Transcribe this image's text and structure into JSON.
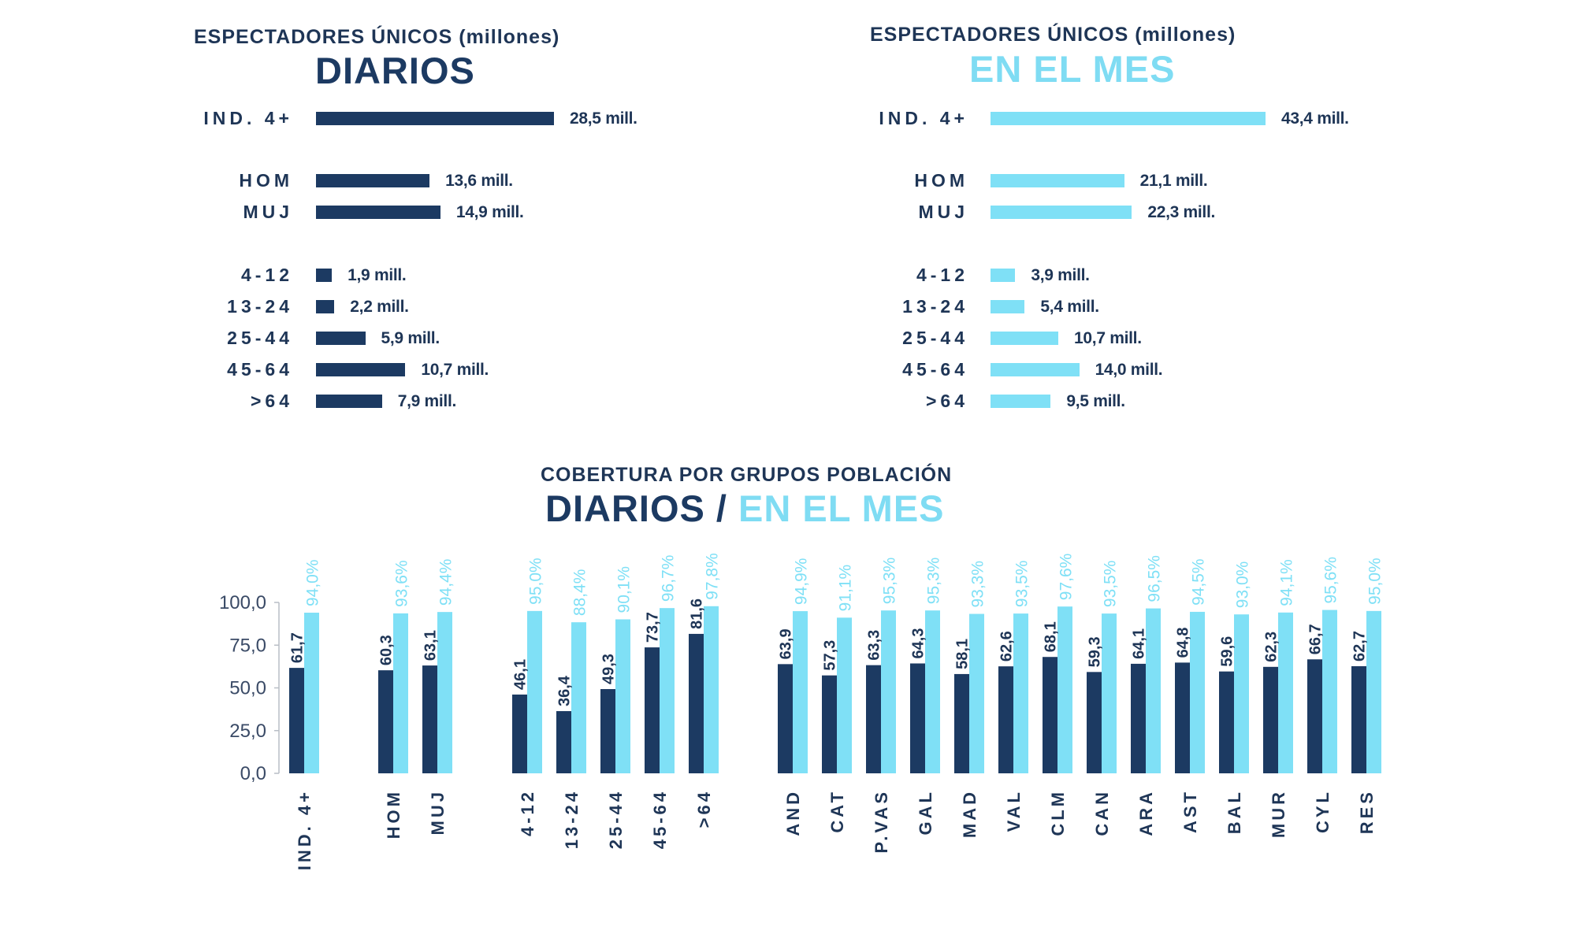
{
  "colors": {
    "diarios": "#1c3a62",
    "mes": "#7fe0f6",
    "text": "#1e3556",
    "axis": "#b9bec6"
  },
  "chart_data": [
    {
      "type": "bar",
      "orientation": "horizontal",
      "subtitle": "ESPECTADORES ÚNICOS (millones)",
      "title": "DIARIOS",
      "categories": [
        "IND. 4+",
        "HOM",
        "MUJ",
        "4-12",
        "13-24",
        "25-44",
        "45-64",
        ">64"
      ],
      "values": [
        28.5,
        13.6,
        14.9,
        1.9,
        2.2,
        5.9,
        10.7,
        7.9
      ],
      "value_labels": [
        "28,5 mill.",
        "13,6 mill.",
        "14,9 mill.",
        "1,9 mill.",
        "2,2 mill.",
        "5,9 mill.",
        "10,7 mill.",
        "7,9 mill."
      ],
      "unit": "millones",
      "xlim": [
        0,
        28.5
      ]
    },
    {
      "type": "bar",
      "orientation": "horizontal",
      "subtitle": "ESPECTADORES ÚNICOS (millones)",
      "title": "EN EL MES",
      "categories": [
        "IND. 4+",
        "HOM",
        "MUJ",
        "4-12",
        "13-24",
        "25-44",
        "45-64",
        ">64"
      ],
      "values": [
        43.4,
        21.1,
        22.3,
        3.9,
        5.4,
        10.7,
        14.0,
        9.5
      ],
      "value_labels": [
        "43,4 mill.",
        "21,1 mill.",
        "22,3 mill.",
        "3,9 mill.",
        "5,4 mill.",
        "10,7 mill.",
        "14,0 mill.",
        "9,5 mill."
      ],
      "unit": "millones",
      "xlim": [
        0,
        43.4
      ]
    },
    {
      "type": "bar",
      "orientation": "vertical",
      "subtitle": "COBERTURA POR GRUPOS POBLACIÓN",
      "title_parts": [
        "DIARIOS",
        "/",
        "EN EL MES"
      ],
      "categories": [
        "IND. 4+",
        "HOM",
        "MUJ",
        "4-12",
        "13-24",
        "25-44",
        "45-64",
        ">64",
        "AND",
        "CAT",
        "P.VAS",
        "GAL",
        "MAD",
        "VAL",
        "CLM",
        "CAN",
        "ARA",
        "AST",
        "BAL",
        "MUR",
        "CYL",
        "RES"
      ],
      "series": [
        {
          "name": "Diarios",
          "values": [
            61.7,
            60.3,
            63.1,
            46.1,
            36.4,
            49.3,
            73.7,
            81.6,
            63.9,
            57.3,
            63.3,
            64.3,
            58.1,
            62.6,
            68.1,
            59.3,
            64.1,
            64.8,
            59.6,
            62.3,
            66.7,
            62.7
          ],
          "labels": [
            "61,7",
            "60,3",
            "63,1",
            "46,1",
            "36,4",
            "49,3",
            "73,7",
            "81,6",
            "63,9",
            "57,3",
            "63,3",
            "64,3",
            "58,1",
            "62,6",
            "68,1",
            "59,3",
            "64,1",
            "64,8",
            "59,6",
            "62,3",
            "66,7",
            "62,7"
          ]
        },
        {
          "name": "En el mes",
          "values": [
            94.0,
            93.6,
            94.4,
            95.0,
            88.4,
            90.1,
            96.7,
            97.8,
            94.9,
            91.1,
            95.3,
            95.3,
            93.3,
            93.5,
            97.6,
            93.5,
            96.5,
            94.5,
            93.0,
            94.1,
            95.6,
            95.0
          ],
          "labels": [
            "94,0%",
            "93,6%",
            "94,4%",
            "95,0%",
            "88,4%",
            "90,1%",
            "96,7%",
            "97,8%",
            "94,9%",
            "91,1%",
            "95,3%",
            "95,3%",
            "93,3%",
            "93,5%",
            "97,6%",
            "93,5%",
            "96,5%",
            "94,5%",
            "93,0%",
            "94,1%",
            "95,6%",
            "95,0%"
          ]
        }
      ],
      "groups": [
        [
          0
        ],
        [
          1,
          2
        ],
        [
          3,
          4,
          5,
          6,
          7
        ],
        [
          8,
          9,
          10,
          11,
          12,
          13,
          14,
          15,
          16,
          17,
          18,
          19,
          20,
          21
        ]
      ],
      "yticks": [
        0,
        25,
        50,
        75,
        100
      ],
      "ytick_labels": [
        "0,0",
        "25,0",
        "50,0",
        "75,0",
        "100,0"
      ],
      "ylim": [
        0,
        100
      ],
      "grid": false,
      "legend": "none"
    }
  ]
}
